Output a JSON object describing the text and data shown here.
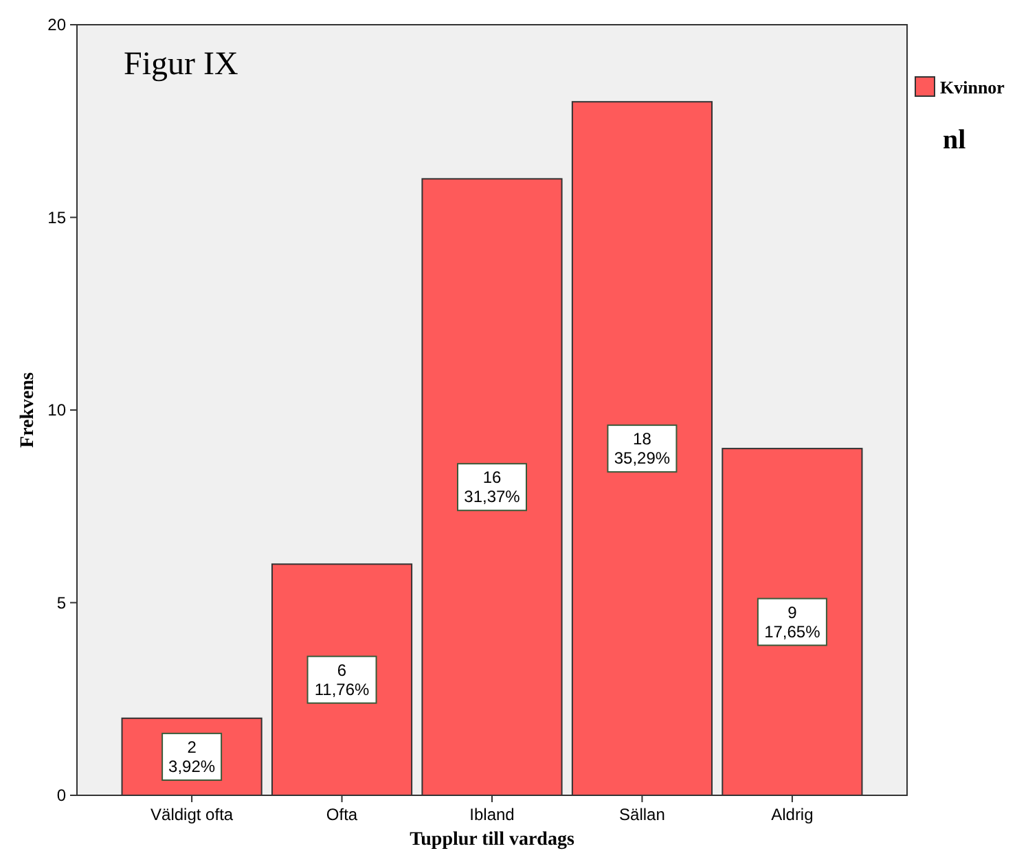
{
  "chart_data": {
    "type": "bar",
    "title": "Figur IX",
    "xlabel": "Tupplur till vardags",
    "ylabel": "Frekvens",
    "categories": [
      "Väldigt ofta",
      "Ofta",
      "Ibland",
      "Sällan",
      "Aldrig"
    ],
    "series": [
      {
        "name": "Kvinnor",
        "color": "#fe5a5a",
        "values": [
          2,
          6,
          16,
          18,
          9
        ],
        "value_labels": [
          "2\n3,92%",
          "6\n11,76%",
          "16\n31,37%",
          "18\n35,29%",
          "9\n17,65%"
        ]
      }
    ],
    "annotations": [
      "nl"
    ],
    "ylim": [
      0,
      20
    ],
    "yticks": [
      0,
      5,
      10,
      15,
      20
    ],
    "grid": false,
    "legend": "top right"
  }
}
